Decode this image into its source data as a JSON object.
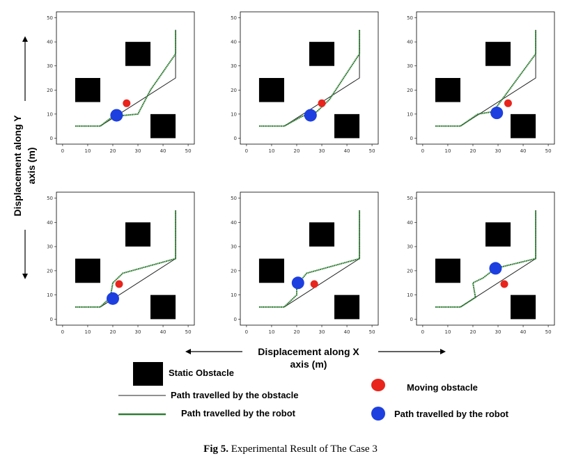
{
  "figure": {
    "caption_bold": "Fig 5.",
    "caption_text": " Experimental Result of The Case 3",
    "y_label_line1": "Displacement along Y",
    "y_label_line2": "axis (m)",
    "x_label_line1": "Displacement along X",
    "x_label_line2": "axis (m)"
  },
  "legend": {
    "static_obstacle": "Static Obstacle",
    "obstacle_path": "Path travelled by the obstacle",
    "robot_path": "Path travelled by the robot",
    "moving_obstacle": "Moving obstacle",
    "robot_marker": "Path travelled by the robot"
  },
  "colors": {
    "robot_path": "#2e7d32",
    "obstacle_path": "#222222",
    "static_obstacle": "#000000",
    "moving_obstacle": "#e8241c",
    "robot": "#1d3fe0"
  },
  "chart_data": [
    {
      "type": "scatter",
      "xlim": [
        0,
        50
      ],
      "ylim": [
        0,
        50
      ],
      "xticks": [
        0,
        10,
        20,
        30,
        40,
        50
      ],
      "yticks": [
        0,
        10,
        20,
        30,
        40,
        50
      ],
      "static_obstacles": [
        [
          5,
          15,
          10,
          10
        ],
        [
          25,
          30,
          10,
          10
        ],
        [
          35,
          0,
          10,
          10
        ]
      ],
      "obstacle_path": [
        [
          15,
          5
        ],
        [
          45,
          25
        ],
        [
          45,
          45
        ]
      ],
      "robot_path": [
        [
          5,
          5
        ],
        [
          15,
          5
        ],
        [
          20,
          9
        ],
        [
          30,
          10
        ],
        [
          35,
          20
        ],
        [
          45,
          35
        ],
        [
          45,
          45
        ]
      ],
      "robot": [
        21.5,
        9.5
      ],
      "moving_obstacle": [
        25.5,
        14.5
      ]
    },
    {
      "type": "scatter",
      "xlim": [
        0,
        50
      ],
      "ylim": [
        0,
        50
      ],
      "xticks": [
        0,
        10,
        20,
        30,
        40,
        50
      ],
      "yticks": [
        0,
        10,
        20,
        30,
        40,
        50
      ],
      "static_obstacles": [
        [
          5,
          15,
          10,
          10
        ],
        [
          25,
          30,
          10,
          10
        ],
        [
          35,
          0,
          10,
          10
        ]
      ],
      "obstacle_path": [
        [
          15,
          5
        ],
        [
          45,
          25
        ],
        [
          45,
          45
        ]
      ],
      "robot_path": [
        [
          5,
          5
        ],
        [
          15,
          5
        ],
        [
          22,
          9
        ],
        [
          28,
          11
        ],
        [
          33,
          16
        ],
        [
          45,
          35
        ],
        [
          45,
          45
        ]
      ],
      "robot": [
        25.5,
        9.5
      ],
      "moving_obstacle": [
        30,
        14.5
      ]
    },
    {
      "type": "scatter",
      "xlim": [
        0,
        50
      ],
      "ylim": [
        0,
        50
      ],
      "xticks": [
        0,
        10,
        20,
        30,
        40,
        50
      ],
      "yticks": [
        0,
        10,
        20,
        30,
        40,
        50
      ],
      "static_obstacles": [
        [
          5,
          15,
          10,
          10
        ],
        [
          25,
          30,
          10,
          10
        ],
        [
          35,
          0,
          10,
          10
        ]
      ],
      "obstacle_path": [
        [
          15,
          5
        ],
        [
          45,
          25
        ],
        [
          45,
          45
        ]
      ],
      "robot_path": [
        [
          5,
          5
        ],
        [
          15,
          5
        ],
        [
          22,
          10
        ],
        [
          28,
          11
        ],
        [
          33,
          18
        ],
        [
          45,
          35
        ],
        [
          45,
          45
        ]
      ],
      "robot": [
        29.5,
        10.5
      ],
      "moving_obstacle": [
        34,
        14.5
      ]
    },
    {
      "type": "scatter",
      "xlim": [
        0,
        50
      ],
      "ylim": [
        0,
        50
      ],
      "xticks": [
        0,
        10,
        20,
        30,
        40,
        50
      ],
      "yticks": [
        0,
        10,
        20,
        30,
        40,
        50
      ],
      "static_obstacles": [
        [
          5,
          15,
          10,
          10
        ],
        [
          25,
          30,
          10,
          10
        ],
        [
          35,
          0,
          10,
          10
        ]
      ],
      "obstacle_path": [
        [
          15,
          5
        ],
        [
          45,
          25
        ],
        [
          45,
          45
        ]
      ],
      "robot_path": [
        [
          5,
          5
        ],
        [
          15,
          5
        ],
        [
          19,
          9
        ],
        [
          20,
          15
        ],
        [
          22,
          17
        ],
        [
          24,
          19
        ],
        [
          45,
          25
        ],
        [
          45,
          45
        ]
      ],
      "robot": [
        20,
        8.5
      ],
      "moving_obstacle": [
        22.5,
        14.5
      ]
    },
    {
      "type": "scatter",
      "xlim": [
        0,
        50
      ],
      "ylim": [
        0,
        50
      ],
      "xticks": [
        0,
        10,
        20,
        30,
        40,
        50
      ],
      "yticks": [
        0,
        10,
        20,
        30,
        40,
        50
      ],
      "static_obstacles": [
        [
          5,
          15,
          10,
          10
        ],
        [
          25,
          30,
          10,
          10
        ],
        [
          35,
          0,
          10,
          10
        ]
      ],
      "obstacle_path": [
        [
          15,
          5
        ],
        [
          45,
          25
        ],
        [
          45,
          45
        ]
      ],
      "robot_path": [
        [
          5,
          5
        ],
        [
          15,
          5
        ],
        [
          20,
          10
        ],
        [
          20,
          14
        ],
        [
          24,
          19
        ],
        [
          45,
          25
        ],
        [
          45,
          45
        ]
      ],
      "robot": [
        20.5,
        15
      ],
      "moving_obstacle": [
        27,
        14.5
      ]
    },
    {
      "type": "scatter",
      "xlim": [
        0,
        50
      ],
      "ylim": [
        0,
        50
      ],
      "xticks": [
        0,
        10,
        20,
        30,
        40,
        50
      ],
      "yticks": [
        0,
        10,
        20,
        30,
        40,
        50
      ],
      "static_obstacles": [
        [
          5,
          15,
          10,
          10
        ],
        [
          25,
          30,
          10,
          10
        ],
        [
          35,
          0,
          10,
          10
        ]
      ],
      "obstacle_path": [
        [
          15,
          5
        ],
        [
          45,
          25
        ],
        [
          45,
          45
        ]
      ],
      "robot_path": [
        [
          5,
          5
        ],
        [
          15,
          5
        ],
        [
          21,
          9
        ],
        [
          20,
          15
        ],
        [
          24,
          17
        ],
        [
          29,
          21
        ],
        [
          45,
          25
        ],
        [
          45,
          45
        ]
      ],
      "robot": [
        29,
        21
      ],
      "moving_obstacle": [
        32.5,
        14.5
      ]
    }
  ]
}
